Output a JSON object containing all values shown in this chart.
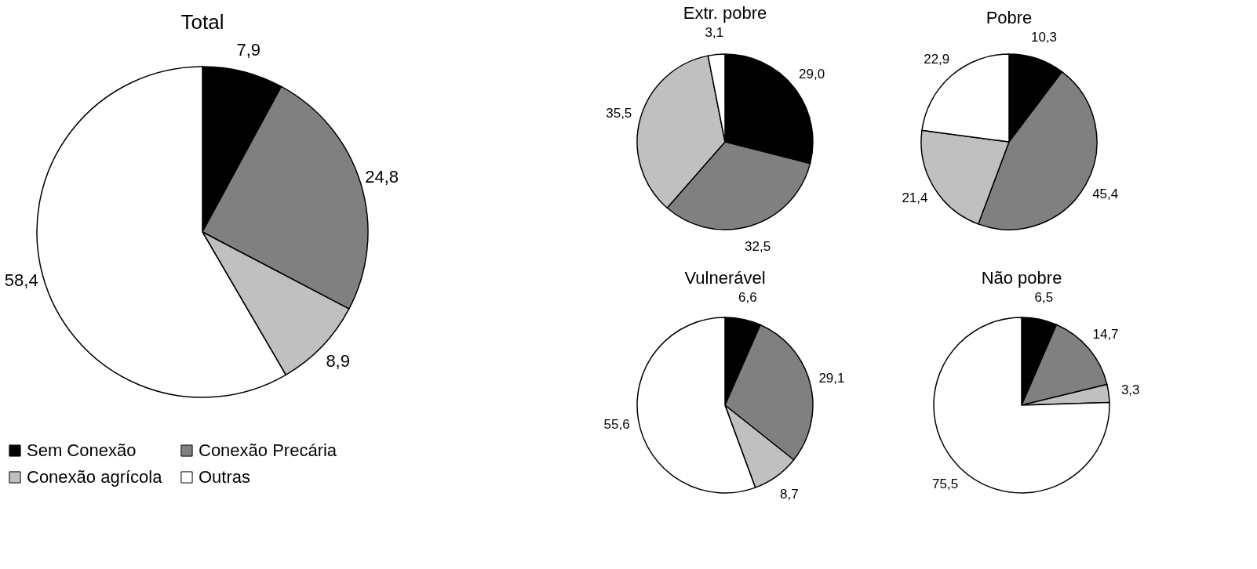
{
  "chart_data": [
    {
      "type": "pie",
      "title": "Total",
      "categories": [
        "Sem Conexão",
        "Conexão Precária",
        "Conexão agrícola",
        "Outras"
      ],
      "values": [
        7.9,
        24.8,
        8.9,
        58.4
      ],
      "value_labels": [
        "7,9",
        "24,8",
        "8,9",
        "58,4"
      ],
      "colors": [
        "#000000",
        "#808080",
        "#c0c0c0",
        "#ffffff"
      ],
      "legend": "bottom"
    },
    {
      "type": "pie",
      "title": "Extr. pobre",
      "categories": [
        null,
        null,
        null,
        null
      ],
      "values": [
        29.0,
        32.5,
        35.5,
        3.1
      ],
      "value_labels": [
        "29,0",
        "32,5",
        "35,5",
        "3,1"
      ],
      "colors": [
        "#000000",
        "#808080",
        "#c0c0c0",
        "#ffffff"
      ]
    },
    {
      "type": "pie",
      "title": "Pobre",
      "categories": [
        null,
        null,
        null,
        null
      ],
      "values": [
        10.3,
        45.4,
        21.4,
        22.9
      ],
      "value_labels": [
        "10,3",
        "45,4",
        "21,4",
        "22,9"
      ],
      "colors": [
        "#000000",
        "#808080",
        "#c0c0c0",
        "#ffffff"
      ]
    },
    {
      "type": "pie",
      "title": "Vulnerável",
      "categories": [
        null,
        null,
        null,
        null
      ],
      "values": [
        6.6,
        29.1,
        8.7,
        55.6
      ],
      "value_labels": [
        "6,6",
        "29,1",
        "8,7",
        "55,6"
      ],
      "colors": [
        "#000000",
        "#808080",
        "#c0c0c0",
        "#ffffff"
      ]
    },
    {
      "type": "pie",
      "title": "Não pobre",
      "categories": [
        null,
        null,
        null,
        null
      ],
      "values": [
        6.5,
        14.7,
        3.3,
        75.5
      ],
      "value_labels": [
        "6,5",
        "14,7",
        "3,3",
        "75,5"
      ],
      "colors": [
        "#000000",
        "#808080",
        "#c0c0c0",
        "#ffffff"
      ]
    }
  ]
}
